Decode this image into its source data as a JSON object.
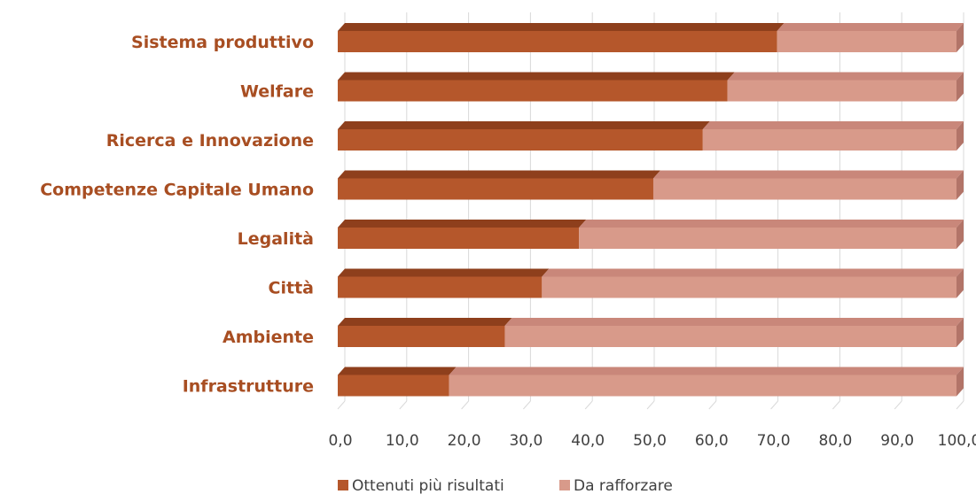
{
  "colors": {
    "series_1": "#B5572B",
    "series_1_top": "#8E3F1C",
    "series_1_side": "#9A4622",
    "series_2": "#D89A8A",
    "series_2_top": "#C9877A",
    "series_2_side": "#B27468",
    "category_text": "#A84E22",
    "axis_text": "#404040",
    "gridline": "#D9D9D9"
  },
  "chart_data": {
    "type": "bar",
    "orientation": "horizontal",
    "stacked": true,
    "style": "3d",
    "categories": [
      "Sistema produttivo",
      "Welfare",
      "Ricerca e Innovazione",
      "Competenze Capitale Umano",
      "Legalità",
      "Città",
      "Ambiente",
      "Infrastrutture"
    ],
    "series": [
      {
        "name": "Ottenuti più risultati",
        "values": [
          71,
          63,
          59,
          51,
          39,
          33,
          27,
          18
        ]
      },
      {
        "name": "Da rafforzare",
        "values": [
          29,
          37,
          41,
          49,
          61,
          67,
          73,
          82
        ]
      }
    ],
    "x_ticks": [
      "0,0",
      "10,0",
      "20,0",
      "30,0",
      "40,0",
      "50,0",
      "60,0",
      "70,0",
      "80,0",
      "90,0",
      "100,0"
    ],
    "xlim": [
      0,
      100
    ],
    "grid": true,
    "legend_position": "bottom"
  }
}
